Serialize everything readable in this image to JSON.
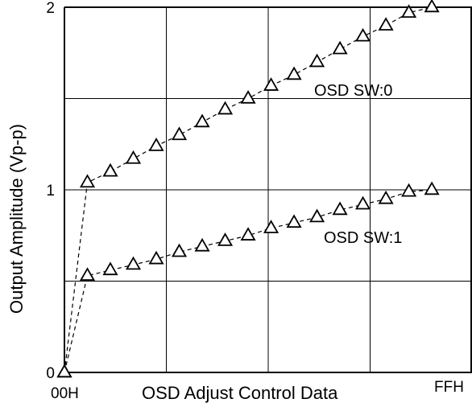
{
  "chart_data": {
    "type": "line",
    "title": "",
    "xlabel": "OSD Adjust Control Data",
    "ylabel": "Output Amplitude (Vp-p)",
    "x_tick_labels": [
      "00H",
      "FFH"
    ],
    "y_tick_labels": [
      "0",
      "1",
      "2"
    ],
    "ylim": [
      0,
      2
    ],
    "xlim": [
      0,
      17
    ],
    "grid": true,
    "series": [
      {
        "name": "OSD SW:0",
        "x": [
          0,
          1,
          2,
          3,
          4,
          5,
          6,
          7,
          8,
          9,
          10,
          11,
          12,
          13,
          14,
          15,
          16,
          17
        ],
        "values": [
          0,
          1.04,
          1.1,
          1.17,
          1.24,
          1.3,
          1.37,
          1.44,
          1.5,
          1.57,
          1.63,
          1.7,
          1.77,
          1.84,
          1.9,
          1.97,
          2.0,
          2.0
        ]
      },
      {
        "name": "OSD SW:1",
        "x": [
          0,
          1,
          2,
          3,
          4,
          5,
          6,
          7,
          8,
          9,
          10,
          11,
          12,
          13,
          14,
          15,
          16,
          17
        ],
        "values": [
          0,
          0.53,
          0.56,
          0.59,
          0.62,
          0.66,
          0.69,
          0.72,
          0.75,
          0.79,
          0.82,
          0.85,
          0.89,
          0.92,
          0.95,
          0.99,
          1.0,
          1.0
        ]
      }
    ]
  }
}
